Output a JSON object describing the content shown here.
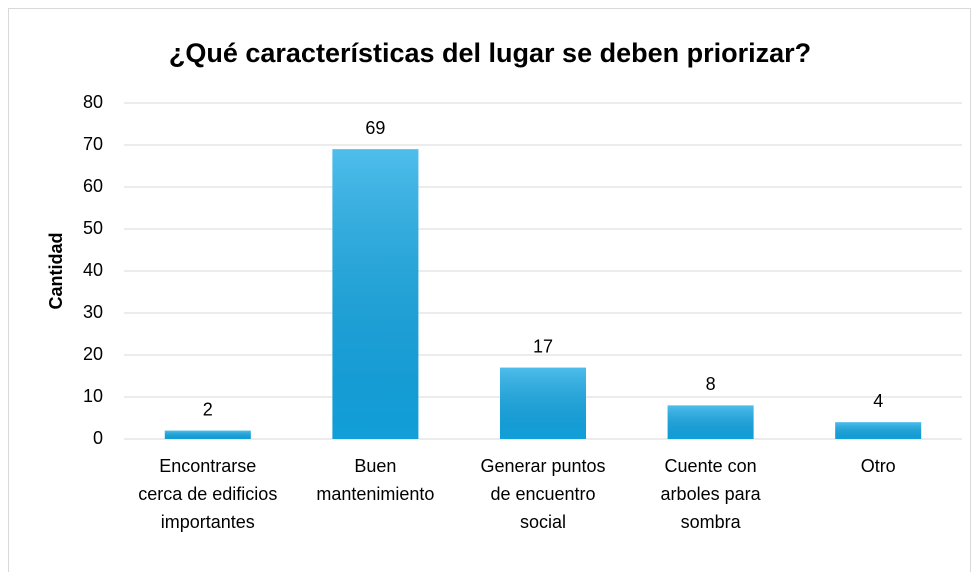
{
  "chart_data": {
    "type": "bar",
    "title": "¿Qué características del lugar se deben priorizar?",
    "y_label": "Cantidad",
    "categories": [
      "Encontrarse cerca de edificios importantes",
      "Buen mantenimiento",
      "Generar puntos de encuentro social",
      "Cuente con arboles para sombra",
      "Otro"
    ],
    "values": [
      2,
      69,
      17,
      8,
      4
    ],
    "color": "#13a8e6",
    "ylim": [
      0,
      80
    ],
    "yticks": [
      0,
      10,
      20,
      30,
      40,
      50,
      60,
      70,
      80
    ],
    "grid": true
  }
}
